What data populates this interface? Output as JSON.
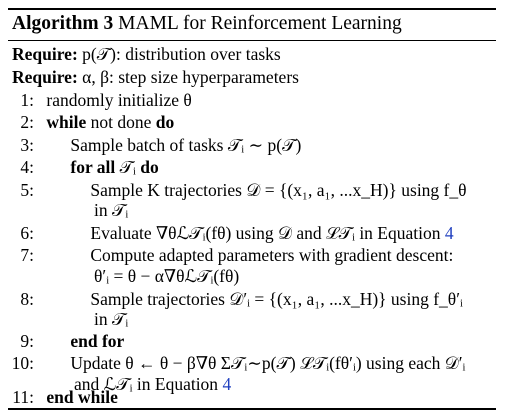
{
  "algorithm": {
    "label": "Algorithm 3",
    "title": "MAML for Reinforcement Learning"
  },
  "require": [
    {
      "keyword": "Require:",
      "text": "p(𝒯): distribution over tasks"
    },
    {
      "keyword": "Require:",
      "text": "α, β: step size hyperparameters"
    }
  ],
  "lines": {
    "l1": {
      "num": "1:",
      "text": "randomly initialize θ"
    },
    "l2": {
      "num": "2:",
      "kw_while": "while",
      "mid": "not done",
      "kw_do": "do"
    },
    "l3": {
      "num": "3:",
      "text": "Sample batch of tasks 𝒯ᵢ ∼ p(𝒯)"
    },
    "l4": {
      "num": "4:",
      "kw_forall": "for all",
      "mid": "𝒯ᵢ",
      "kw_do": "do"
    },
    "l5": {
      "num": "5:",
      "text": "Sample K trajectories 𝒟 = {(x₁, a₁, ...x_H)} using f_θ",
      "cont": "in 𝒯ᵢ"
    },
    "l6": {
      "num": "6:",
      "text_a": "Evaluate ∇θℒ𝒯ᵢ(fθ) using 𝒟 and ℒ𝒯ᵢ in Equation ",
      "ref": "4"
    },
    "l7": {
      "num": "7:",
      "text": "Compute adapted parameters with gradient descent:",
      "cont": "θ′ᵢ = θ − α∇θℒ𝒯ᵢ(fθ)"
    },
    "l8": {
      "num": "8:",
      "text": "Sample trajectories 𝒟′ᵢ = {(x₁, a₁, ...x_H)} using f_θ′ᵢ",
      "cont": "in 𝒯ᵢ"
    },
    "l9": {
      "num": "9:",
      "kw_endfor": "end for"
    },
    "l10": {
      "num": "10:",
      "text": "Update θ ← θ − β∇θ Σ𝒯ᵢ∼p(𝒯) ℒ𝒯ᵢ(fθ′ᵢ) using each 𝒟′ᵢ",
      "cont_a": "and ℒ𝒯ᵢ in Equation ",
      "ref": "4"
    },
    "l11": {
      "num": "11:",
      "kw_endwhile": "end while"
    }
  },
  "colors": {
    "text": "#000000",
    "reference_link": "#1f3fbf"
  }
}
